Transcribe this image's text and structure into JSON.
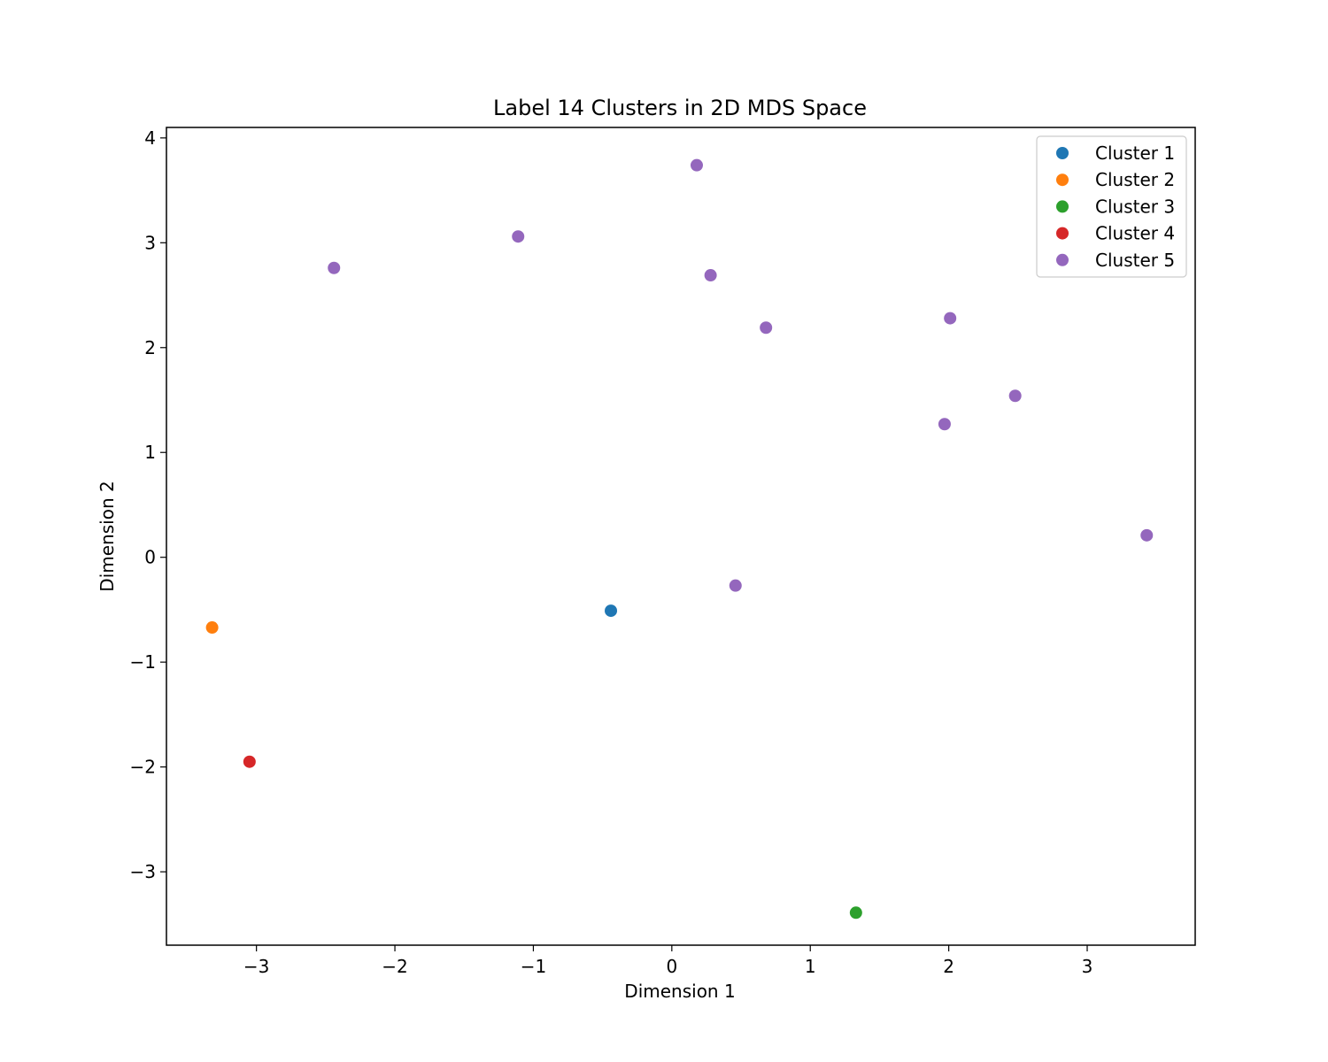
{
  "chart_data": {
    "type": "scatter",
    "title": "Label 14 Clusters in 2D MDS Space",
    "xlabel": "Dimension 1",
    "ylabel": "Dimension 2",
    "xlim": [
      -3.65,
      3.78
    ],
    "ylim": [
      -3.7,
      4.1
    ],
    "xticks": [
      -3,
      -2,
      -1,
      0,
      1,
      2,
      3
    ],
    "yticks": [
      -3,
      -2,
      -1,
      0,
      1,
      2,
      3,
      4
    ],
    "grid": false,
    "legend_position": "top-right",
    "series": [
      {
        "name": "Cluster 1",
        "color": "#1f77b4",
        "points": [
          [
            -0.44,
            -0.51
          ]
        ]
      },
      {
        "name": "Cluster 2",
        "color": "#ff7f0e",
        "points": [
          [
            -3.32,
            -0.67
          ]
        ]
      },
      {
        "name": "Cluster 3",
        "color": "#2ca02c",
        "points": [
          [
            1.33,
            -3.39
          ]
        ]
      },
      {
        "name": "Cluster 4",
        "color": "#d62728",
        "points": [
          [
            -3.05,
            -1.95
          ]
        ]
      },
      {
        "name": "Cluster 5",
        "color": "#9467bd",
        "points": [
          [
            0.18,
            3.74
          ],
          [
            -1.11,
            3.06
          ],
          [
            -2.44,
            2.76
          ],
          [
            0.28,
            2.69
          ],
          [
            0.68,
            2.19
          ],
          [
            2.01,
            2.28
          ],
          [
            2.48,
            1.54
          ],
          [
            1.97,
            1.27
          ],
          [
            3.43,
            0.21
          ],
          [
            0.46,
            -0.27
          ]
        ]
      }
    ]
  }
}
